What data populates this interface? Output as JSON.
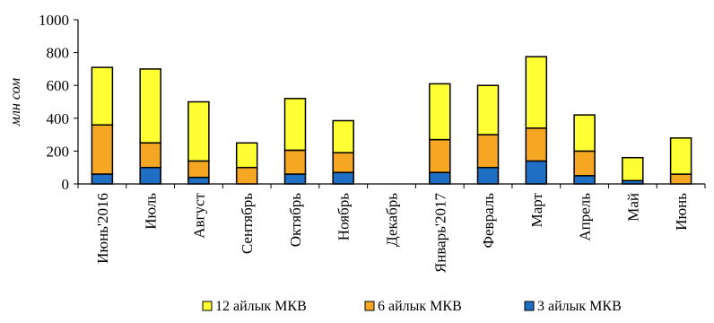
{
  "chart_data": {
    "type": "bar",
    "stacked": true,
    "categories": [
      "Июнь'2016",
      "Июль",
      "Август",
      "Сентябрь",
      "Октябрь",
      "Ноябрь",
      "Декабрь",
      "Январь'2017",
      "Февраль",
      "Март",
      "Апрель",
      "Май",
      "Июнь"
    ],
    "series": [
      {
        "name": "3 айлык МКВ",
        "color": "#1f6fc5",
        "values": [
          60,
          100,
          40,
          0,
          60,
          70,
          0,
          70,
          100,
          140,
          50,
          20,
          0
        ]
      },
      {
        "name": "6 айлык МКВ",
        "color": "#f5a623",
        "values": [
          300,
          150,
          100,
          100,
          145,
          120,
          0,
          200,
          200,
          200,
          150,
          0,
          60
        ]
      },
      {
        "name": "12 айлык МКВ",
        "color": "#ffff33",
        "values": [
          350,
          450,
          360,
          150,
          315,
          195,
          0,
          340,
          300,
          435,
          220,
          140,
          220
        ]
      }
    ],
    "legend_order": [
      "12 айлык МКВ",
      "6 айлык МКВ",
      "3 айлык МКВ"
    ],
    "ylabel": "млн сом",
    "xlabel": "",
    "title": "",
    "ylim": [
      0,
      1000
    ],
    "yticks": [
      0,
      200,
      400,
      600,
      800,
      1000
    ],
    "grid": false,
    "legend_position": "bottom"
  }
}
